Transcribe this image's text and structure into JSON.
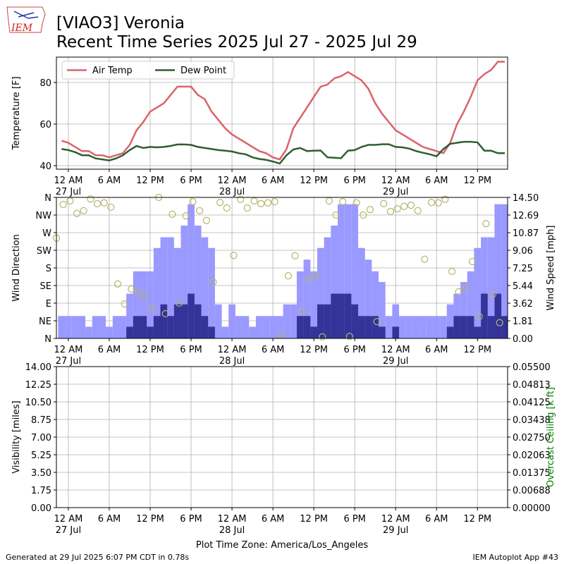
{
  "header": {
    "logo": "IEM",
    "title": "[VIAO3] Veronia",
    "subtitle": "Recent Time Series 2025 Jul 27 - 2025 Jul 29"
  },
  "footer": {
    "generated": "Generated at 29 Jul 2025 6:07 PM CDT in 0.78s",
    "app": "IEM Autoplot App #43"
  },
  "time_axis": {
    "xlim": [
      "26 Jul 22:15",
      "29 Jul 16:25"
    ],
    "xticks": [
      {
        "value": "27 Jul 00:00",
        "label": "12 AM",
        "date": "27 Jul"
      },
      {
        "value": "27 Jul 06:00",
        "label": "6 AM"
      },
      {
        "value": "27 Jul 12:00",
        "label": "12 PM"
      },
      {
        "value": "27 Jul 18:00",
        "label": "6 PM"
      },
      {
        "value": "28 Jul 00:00",
        "label": "12 AM",
        "date": "28 Jul"
      },
      {
        "value": "28 Jul 06:00",
        "label": "6 AM"
      },
      {
        "value": "28 Jul 12:00",
        "label": "12 PM"
      },
      {
        "value": "28 Jul 18:00",
        "label": "6 PM"
      },
      {
        "value": "29 Jul 00:00",
        "label": "12 AM",
        "date": "29 Jul"
      },
      {
        "value": "29 Jul 06:00",
        "label": "6 AM"
      },
      {
        "value": "29 Jul 12:00",
        "label": "12 PM"
      }
    ]
  },
  "chart_data": [
    {
      "type": "line",
      "ylabel": "Temperature [F]",
      "ylim": [
        38.3,
        92.2
      ],
      "yticks": [
        40,
        60,
        80
      ],
      "grid": true,
      "legend": "upper left",
      "x": [
        "26 Jul 23:00",
        "27 Jul 00:00",
        "27 Jul 01:00",
        "27 Jul 02:00",
        "27 Jul 03:00",
        "27 Jul 04:00",
        "27 Jul 05:00",
        "27 Jul 06:00",
        "27 Jul 07:00",
        "27 Jul 08:00",
        "27 Jul 09:00",
        "27 Jul 10:00",
        "27 Jul 11:00",
        "27 Jul 12:00",
        "27 Jul 13:00",
        "27 Jul 14:00",
        "27 Jul 15:00",
        "27 Jul 16:00",
        "27 Jul 17:00",
        "27 Jul 18:00",
        "27 Jul 19:00",
        "27 Jul 20:00",
        "27 Jul 21:00",
        "27 Jul 22:00",
        "27 Jul 23:00",
        "28 Jul 00:00",
        "28 Jul 01:00",
        "28 Jul 02:00",
        "28 Jul 03:00",
        "28 Jul 04:00",
        "28 Jul 05:00",
        "28 Jul 06:00",
        "28 Jul 07:00",
        "28 Jul 08:00",
        "28 Jul 09:00",
        "28 Jul 10:00",
        "28 Jul 11:00",
        "28 Jul 12:00",
        "28 Jul 13:00",
        "28 Jul 14:00",
        "28 Jul 15:00",
        "28 Jul 16:00",
        "28 Jul 17:00",
        "28 Jul 18:00",
        "28 Jul 19:00",
        "28 Jul 20:00",
        "28 Jul 21:00",
        "28 Jul 22:00",
        "28 Jul 23:00",
        "29 Jul 00:00",
        "29 Jul 01:00",
        "29 Jul 02:00",
        "29 Jul 03:00",
        "29 Jul 04:00",
        "29 Jul 05:00",
        "29 Jul 06:00",
        "29 Jul 07:00",
        "29 Jul 08:00",
        "29 Jul 09:00",
        "29 Jul 10:00",
        "29 Jul 11:00",
        "29 Jul 12:00",
        "29 Jul 13:00",
        "29 Jul 14:00",
        "29 Jul 15:00",
        "29 Jul 16:00"
      ],
      "series": [
        {
          "name": "Air Temp",
          "color": "#d9646b",
          "values": [
            52,
            51,
            49,
            47,
            47,
            45,
            45,
            44,
            45,
            46,
            50,
            57,
            61,
            66,
            68,
            70,
            74,
            78,
            78,
            78,
            74,
            72,
            66,
            62,
            58,
            55,
            53,
            51,
            49,
            47,
            46,
            44,
            43,
            48,
            58,
            63,
            68,
            73,
            78,
            79,
            82,
            83,
            85,
            83,
            81,
            77,
            70,
            65,
            61,
            57,
            55,
            53,
            51,
            49,
            48,
            47,
            46,
            51,
            60,
            66,
            73,
            81,
            84,
            86,
            90,
            90
          ]
        },
        {
          "name": "Dew Point",
          "color": "#2f5e30",
          "values": [
            48,
            47.5,
            46.5,
            45,
            45,
            43.5,
            43,
            42.5,
            43.5,
            45,
            47.5,
            49.5,
            48.5,
            49,
            48.8,
            49,
            49.5,
            50.2,
            50.2,
            50,
            49,
            48.5,
            48,
            47.5,
            47.2,
            46.8,
            46,
            45.5,
            44,
            43.2,
            42.8,
            42,
            41,
            45,
            47.8,
            48.5,
            47,
            47.2,
            47.3,
            44,
            43.8,
            43.6,
            47.2,
            47.5,
            49,
            50,
            50,
            50.3,
            50.3,
            49,
            48.8,
            48.2,
            47,
            46.2,
            45.5,
            44.5,
            48,
            50.5,
            51,
            51.5,
            51.5,
            51.2,
            47.2,
            47.2,
            46,
            46
          ]
        }
      ]
    },
    {
      "type": "bar",
      "ylabel": "Wind Direction",
      "y2label": "Wind Speed [mph]",
      "ylim": [
        0,
        360
      ],
      "y2lim": [
        0,
        14.5
      ],
      "grid": true,
      "yticks": [
        {
          "value": 0,
          "label": "N"
        },
        {
          "value": 45,
          "label": "NE"
        },
        {
          "value": 90,
          "label": "E"
        },
        {
          "value": 135,
          "label": "SE"
        },
        {
          "value": 180,
          "label": "S"
        },
        {
          "value": 225,
          "label": "SW"
        },
        {
          "value": 270,
          "label": "W"
        },
        {
          "value": 315,
          "label": "NW"
        },
        {
          "value": 360,
          "label": "N"
        }
      ],
      "y2ticks": [
        {
          "value": 0,
          "label": "0.00"
        },
        1.81,
        3.62,
        5.44,
        7.25,
        9.06,
        10.87,
        12.69,
        {
          "value": 14.5,
          "label": "14.50"
        }
      ],
      "x": [
        "26 Jul 23:00",
        "27 Jul 00:00",
        "27 Jul 01:00",
        "27 Jul 02:00",
        "27 Jul 03:00",
        "27 Jul 04:00",
        "27 Jul 05:00",
        "27 Jul 06:00",
        "27 Jul 07:00",
        "27 Jul 08:00",
        "27 Jul 09:00",
        "27 Jul 10:00",
        "27 Jul 11:00",
        "27 Jul 12:00",
        "27 Jul 13:00",
        "27 Jul 14:00",
        "27 Jul 15:00",
        "27 Jul 16:00",
        "27 Jul 17:00",
        "27 Jul 18:00",
        "27 Jul 19:00",
        "27 Jul 20:00",
        "27 Jul 21:00",
        "27 Jul 22:00",
        "27 Jul 23:00",
        "28 Jul 00:00",
        "28 Jul 01:00",
        "28 Jul 02:00",
        "28 Jul 03:00",
        "28 Jul 04:00",
        "28 Jul 05:00",
        "28 Jul 06:00",
        "28 Jul 07:00",
        "28 Jul 08:00",
        "28 Jul 09:00",
        "28 Jul 10:00",
        "28 Jul 11:00",
        "28 Jul 12:00",
        "28 Jul 13:00",
        "28 Jul 14:00",
        "28 Jul 15:00",
        "28 Jul 16:00",
        "28 Jul 17:00",
        "28 Jul 18:00",
        "28 Jul 19:00",
        "28 Jul 20:00",
        "28 Jul 21:00",
        "28 Jul 22:00",
        "28 Jul 23:00",
        "29 Jul 00:00",
        "29 Jul 01:00",
        "29 Jul 02:00",
        "29 Jul 03:00",
        "29 Jul 04:00",
        "29 Jul 05:00",
        "29 Jul 06:00",
        "29 Jul 07:00",
        "29 Jul 08:00",
        "29 Jul 09:00",
        "29 Jul 10:00",
        "29 Jul 11:00",
        "29 Jul 12:00",
        "29 Jul 13:00",
        "29 Jul 14:00",
        "29 Jul 15:00",
        "29 Jul 16:00"
      ],
      "series": [
        {
          "type": "bar",
          "axis": "y2",
          "color": "#9999ff",
          "values": [
            2.3,
            2.3,
            2.3,
            2.3,
            1.2,
            2.3,
            2.3,
            1.2,
            2.3,
            2.3,
            4.6,
            6.9,
            6.9,
            6.9,
            9.3,
            10.4,
            10.4,
            9.3,
            11.6,
            13.8,
            11.6,
            10.4,
            9.3,
            3.5,
            1.2,
            3.5,
            2.3,
            2.3,
            1.2,
            2.3,
            2.3,
            2.3,
            2.3,
            3.5,
            3.5,
            6.9,
            8.1,
            6.9,
            9.3,
            10.4,
            11.6,
            13.8,
            13.8,
            13.8,
            9.3,
            8.1,
            6.9,
            5.8,
            2.3,
            3.5,
            2.3,
            2.3,
            2.3,
            2.3,
            2.3,
            2.3,
            2.3,
            3.5,
            4.6,
            5.8,
            6.9,
            9.3,
            10.4,
            10.4,
            13.8,
            13.8
          ]
        },
        {
          "type": "bar",
          "axis": "y2",
          "color": "#333399",
          "values": [
            0,
            0,
            0,
            0,
            0,
            0,
            0,
            0,
            0,
            0,
            1.2,
            2.3,
            2.3,
            1.2,
            2.3,
            3.5,
            2.3,
            3.5,
            3.5,
            4.6,
            3.5,
            2.3,
            1.2,
            0,
            0,
            0,
            0,
            0,
            0,
            0,
            0,
            0,
            0,
            0,
            0,
            2.3,
            2.3,
            1.2,
            3.5,
            3.5,
            4.6,
            4.6,
            4.6,
            3.5,
            2.3,
            2.3,
            2.3,
            1.2,
            0,
            1.2,
            0,
            0,
            0,
            0,
            0,
            0,
            0,
            1.2,
            2.3,
            2.3,
            2.3,
            1.2,
            4.6,
            2.3,
            4.6,
            2.3
          ]
        },
        {
          "type": "scatter",
          "color": "#b5b56c",
          "x": [
            "26 Jul 22:15",
            "26 Jul 23:15",
            "27 Jul 00:15",
            "27 Jul 01:15",
            "27 Jul 02:15",
            "27 Jul 03:15",
            "27 Jul 04:15",
            "27 Jul 05:15",
            "27 Jul 06:15",
            "27 Jul 07:15",
            "27 Jul 08:15",
            "27 Jul 09:15",
            "27 Jul 10:15",
            "27 Jul 11:15",
            "27 Jul 12:15",
            "27 Jul 13:15",
            "27 Jul 14:15",
            "27 Jul 15:15",
            "27 Jul 16:15",
            "27 Jul 17:15",
            "27 Jul 18:15",
            "27 Jul 19:15",
            "27 Jul 20:15",
            "27 Jul 21:15",
            "27 Jul 22:15",
            "27 Jul 23:15",
            "28 Jul 00:15",
            "28 Jul 01:15",
            "28 Jul 02:15",
            "28 Jul 03:15",
            "28 Jul 04:15",
            "28 Jul 05:15",
            "28 Jul 06:15",
            "28 Jul 07:15",
            "28 Jul 08:15",
            "28 Jul 09:15",
            "28 Jul 10:15",
            "28 Jul 11:15",
            "28 Jul 12:15",
            "28 Jul 13:15",
            "28 Jul 14:15",
            "28 Jul 15:15",
            "28 Jul 16:15",
            "28 Jul 17:15",
            "28 Jul 18:15",
            "28 Jul 19:15",
            "28 Jul 20:15",
            "28 Jul 21:15",
            "28 Jul 22:15",
            "28 Jul 23:15",
            "29 Jul 00:15",
            "29 Jul 01:15",
            "29 Jul 02:15",
            "29 Jul 03:15",
            "29 Jul 04:15",
            "29 Jul 05:15",
            "29 Jul 06:15",
            "29 Jul 07:15",
            "29 Jul 08:15",
            "29 Jul 09:15",
            "29 Jul 10:15",
            "29 Jul 11:15",
            "29 Jul 12:15",
            "29 Jul 13:15",
            "29 Jul 14:15",
            "29 Jul 15:15"
          ],
          "values": [
            256,
            342,
            351,
            319,
            326,
            356,
            344,
            346,
            335,
            139,
            88,
            126,
            119,
            106,
            76,
            360,
            63,
            317,
            90,
            313,
            349,
            326,
            301,
            144,
            347,
            333,
            212,
            355,
            333,
            351,
            344,
            346,
            349,
            9,
            160,
            211,
            70,
            151,
            162,
            4,
            351,
            315,
            349,
            5,
            346,
            315,
            329,
            43,
            344,
            324,
            331,
            337,
            340,
            326,
            202,
            347,
            346,
            355,
            171,
            119,
            128,
            196,
            56,
            293,
            113,
            40
          ]
        }
      ]
    },
    {
      "type": "line",
      "ylabel": "Visibility [miles]",
      "y2label": "Overcast Ceiling [k ft]",
      "y2label_color": "#008000",
      "xlabel": "Plot Time Zone: America/Los_Angeles",
      "grid": true,
      "ylim": [
        0,
        14
      ],
      "y2lim": [
        0,
        0.055
      ],
      "yticks": [
        {
          "value": 0,
          "label": "0.00"
        },
        1.75,
        {
          "value": 3.5,
          "label": "3.50"
        },
        5.25,
        {
          "value": 7,
          "label": "7.00"
        },
        8.75,
        {
          "value": 10.5,
          "label": "10.50"
        },
        12.25,
        {
          "value": 14,
          "label": "14.00"
        }
      ],
      "y2ticks": [
        {
          "value": 0,
          "label": "0.00000"
        },
        {
          "value": 0.006875,
          "label": "0.00688"
        },
        {
          "value": 0.01375,
          "label": "0.01375"
        },
        {
          "value": 0.020625,
          "label": "0.02063"
        },
        {
          "value": 0.0275,
          "label": "0.02750"
        },
        {
          "value": 0.034375,
          "label": "0.03438"
        },
        {
          "value": 0.04125,
          "label": "0.04125"
        },
        {
          "value": 0.048125,
          "label": "0.04813"
        },
        {
          "value": 0.055,
          "label": "0.05500"
        }
      ]
    }
  ]
}
